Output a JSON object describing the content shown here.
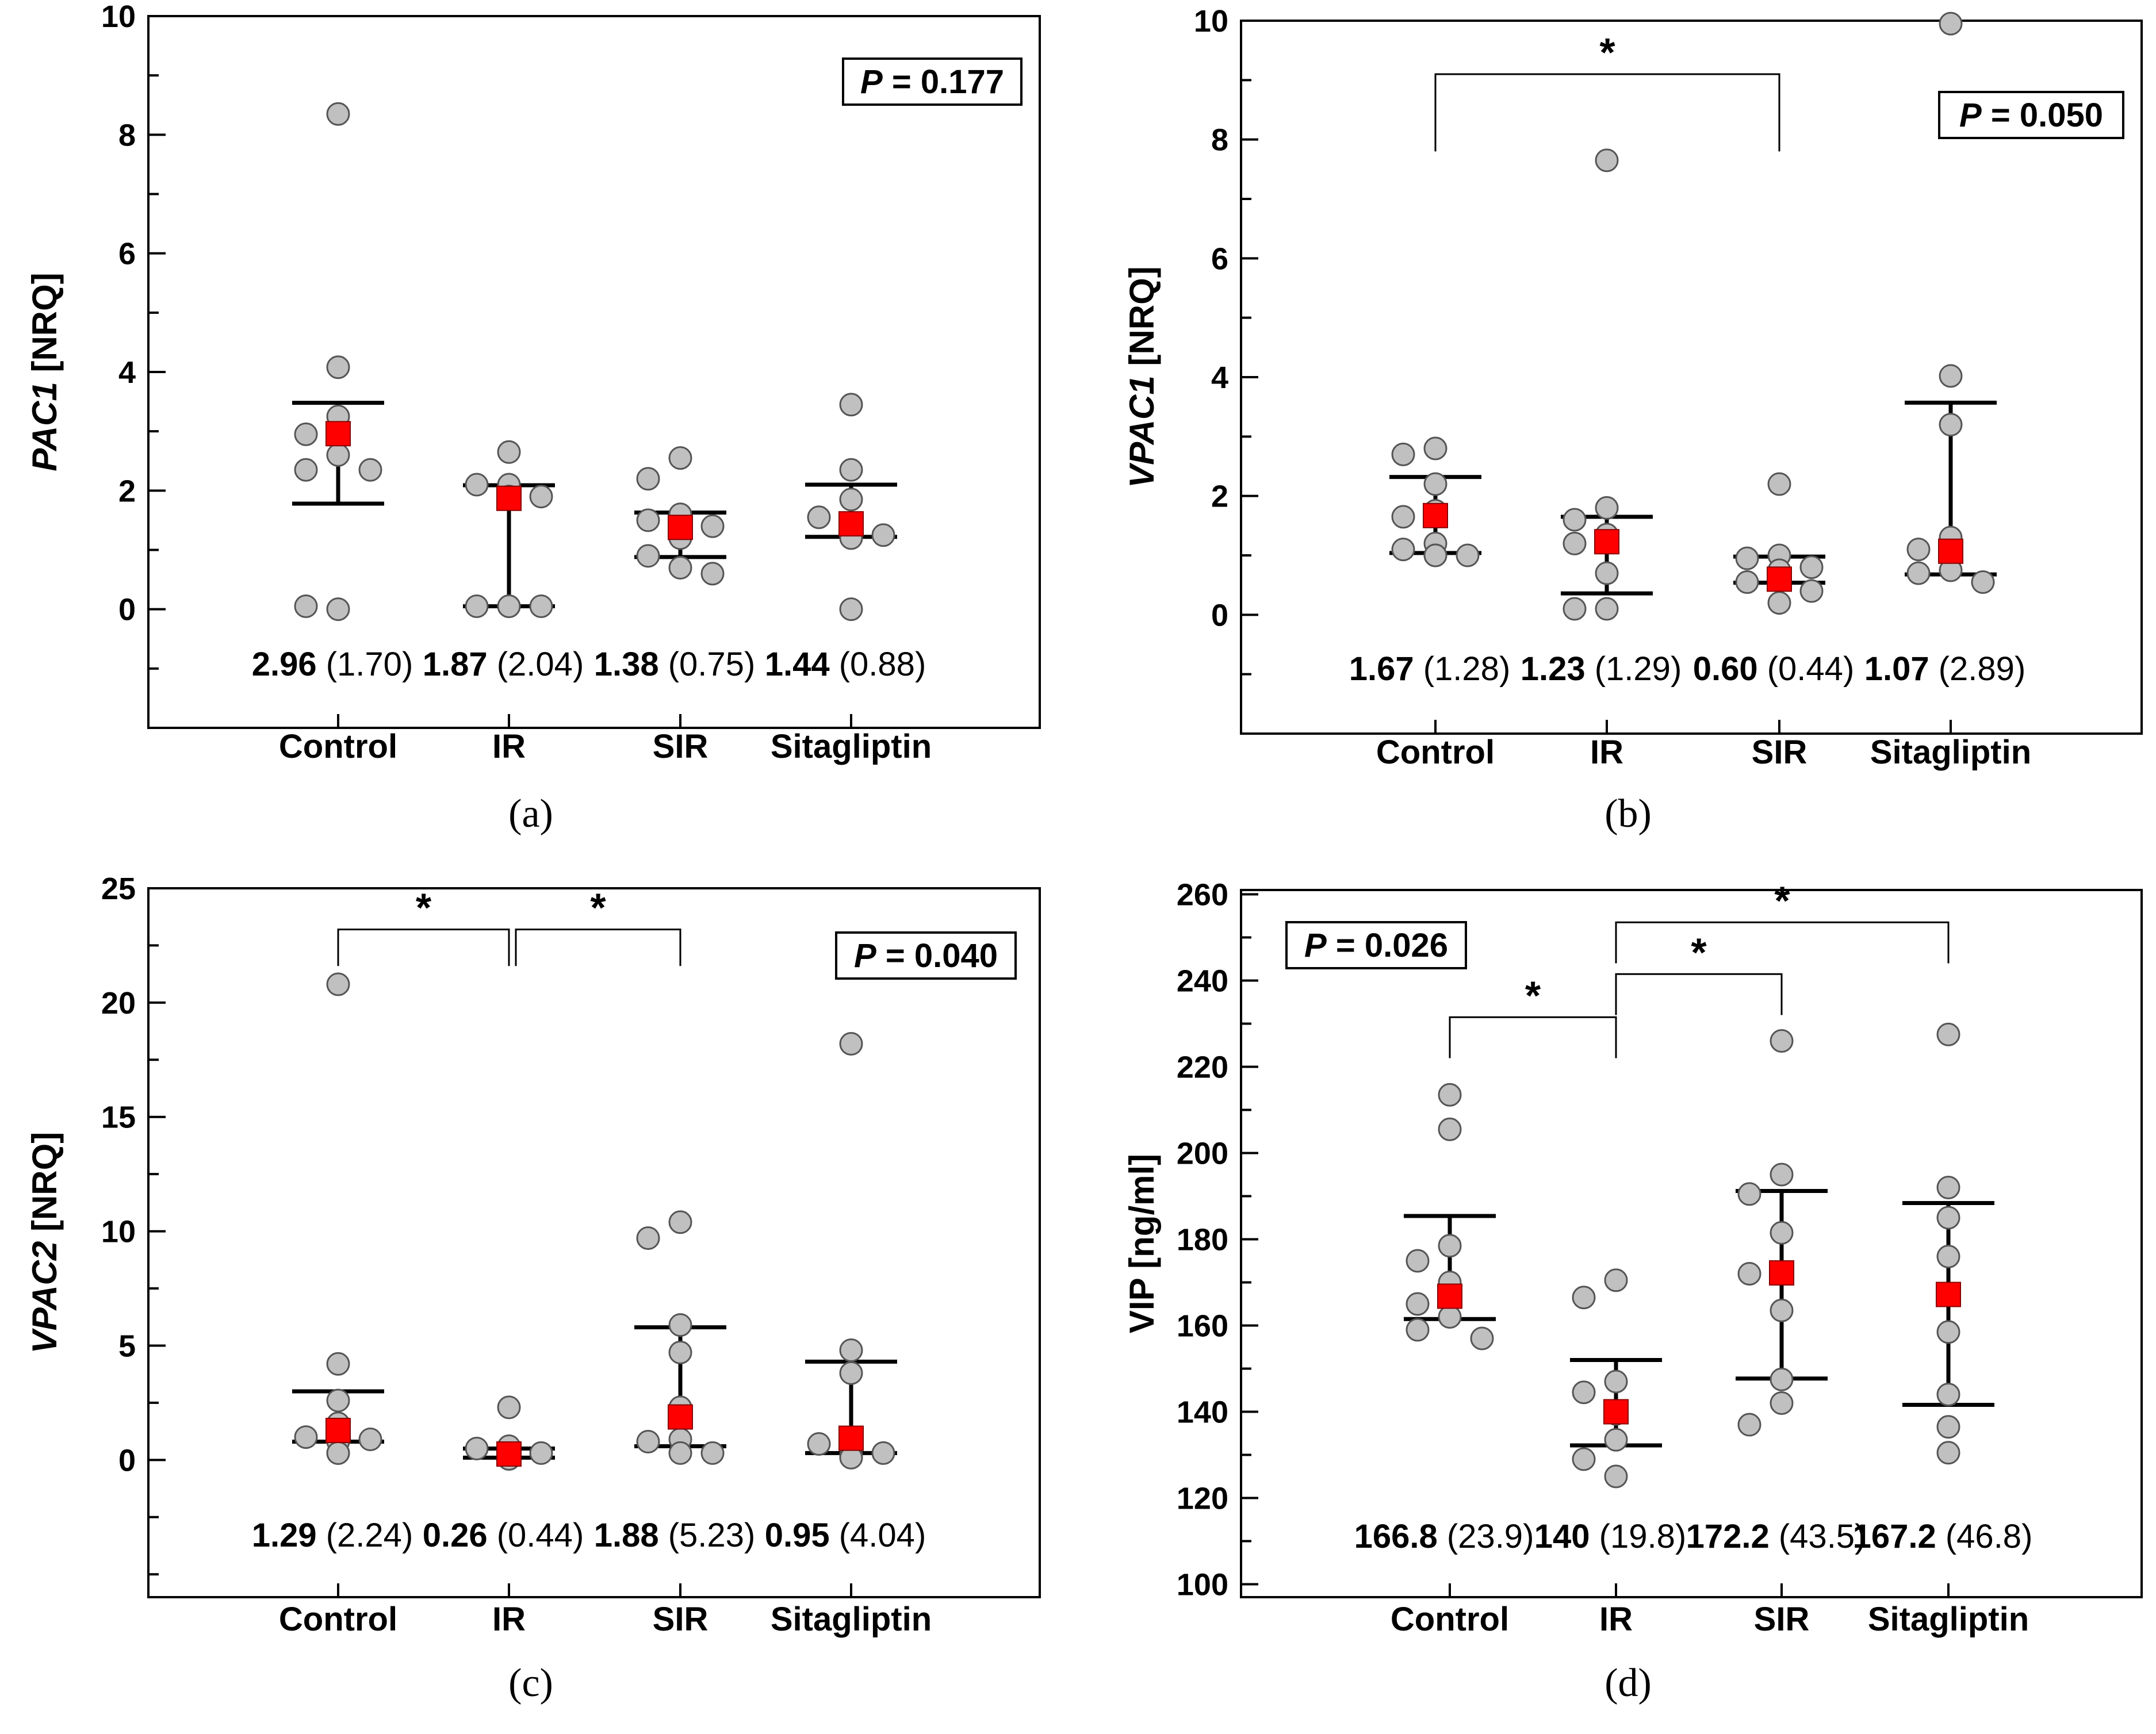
{
  "chart_data": [
    {
      "type": "scatter",
      "panel_label": "(a)",
      "ylabel_gene": "PAC1",
      "ylabel_unit": "[NRQ]",
      "ylim": [
        -2,
        10
      ],
      "yticks": [
        0,
        2,
        4,
        6,
        8,
        10
      ],
      "p_value_label": "P",
      "p_value_rest": " = 0.177",
      "categories": [
        "Control",
        "IR",
        "SIR",
        "Sitagliptin"
      ],
      "groups": [
        {
          "name": "Control",
          "points": [
            8.35,
            4.08,
            3.25,
            2.95,
            2.6,
            2.35,
            2.35,
            0.0,
            0.05
          ],
          "median": 2.96,
          "q_low": 1.78,
          "q_high": 3.48,
          "median_label": "2.96",
          "iqr_label": "(1.70)"
        },
        {
          "name": "IR",
          "points": [
            2.65,
            2.1,
            2.1,
            1.9,
            1.9,
            0.05,
            0.05,
            0.05,
            0.05
          ],
          "median": 1.87,
          "q_low": 0.05,
          "q_high": 2.09,
          "median_label": "1.87",
          "iqr_label": "(2.04)"
        },
        {
          "name": "SIR",
          "points": [
            2.55,
            2.2,
            1.6,
            1.5,
            1.4,
            1.3,
            1.2,
            0.9,
            0.7,
            0.6
          ],
          "median": 1.38,
          "q_low": 0.88,
          "q_high": 1.63,
          "median_label": "1.38",
          "iqr_label": "(0.75)"
        },
        {
          "name": "Sitagliptin",
          "points": [
            3.45,
            2.35,
            1.85,
            1.55,
            1.25,
            1.25,
            1.2,
            0.0
          ],
          "median": 1.44,
          "q_low": 1.22,
          "q_high": 2.1,
          "median_label": "1.44",
          "iqr_label": "(0.88)"
        }
      ],
      "brackets": []
    },
    {
      "type": "scatter",
      "panel_label": "(b)",
      "ylabel_gene": "VPAC1",
      "ylabel_unit": "[NRQ]",
      "ylim": [
        -2,
        10
      ],
      "yticks": [
        0,
        2,
        4,
        6,
        8,
        10
      ],
      "p_value_label": "P",
      "p_value_rest": " = 0.050",
      "categories": [
        "Control",
        "IR",
        "SIR",
        "Sitagliptin"
      ],
      "groups": [
        {
          "name": "Control",
          "points": [
            2.8,
            2.7,
            2.2,
            1.75,
            1.65,
            1.2,
            1.1,
            1.0,
            1.0,
            1.0
          ],
          "median": 1.67,
          "q_low": 1.04,
          "q_high": 2.32,
          "median_label": "1.67",
          "iqr_label": "(1.28)"
        },
        {
          "name": "IR",
          "points": [
            7.65,
            1.8,
            1.6,
            1.35,
            1.2,
            0.7,
            0.1,
            0.1
          ],
          "median": 1.23,
          "q_low": 0.36,
          "q_high": 1.65,
          "median_label": "1.23",
          "iqr_label": "(1.29)"
        },
        {
          "name": "SIR",
          "points": [
            2.2,
            1.0,
            0.95,
            0.8,
            0.75,
            0.6,
            0.55,
            0.4,
            0.2
          ],
          "median": 0.6,
          "q_low": 0.54,
          "q_high": 0.98,
          "median_label": "0.60",
          "iqr_label": "(0.44)"
        },
        {
          "name": "Sitagliptin",
          "points": [
            9.95,
            4.02,
            3.2,
            1.3,
            1.1,
            0.75,
            0.7,
            0.55
          ],
          "median": 1.07,
          "q_low": 0.68,
          "q_high": 3.57,
          "median_label": "1.07",
          "iqr_label": "(2.89)"
        }
      ],
      "brackets": [
        {
          "from": 0,
          "to": 2,
          "y": 9.1,
          "drop_to": 7.8,
          "label": "*"
        }
      ]
    },
    {
      "type": "scatter",
      "panel_label": "(c)",
      "ylabel_gene": "VPAC2",
      "ylabel_unit": "[NRQ]",
      "ylim": [
        -6,
        25
      ],
      "yticks": [
        0,
        5,
        10,
        15,
        20,
        25
      ],
      "p_value_label": "P",
      "p_value_rest": " = 0.040",
      "categories": [
        "Control",
        "IR",
        "SIR",
        "Sitagliptin"
      ],
      "groups": [
        {
          "name": "Control",
          "points": [
            20.8,
            4.2,
            2.6,
            1.6,
            1.0,
            0.9,
            0.8,
            0.3,
            0.3
          ],
          "median": 1.29,
          "q_low": 0.8,
          "q_high": 3.0,
          "median_label": "1.29",
          "iqr_label": "(2.24)"
        },
        {
          "name": "IR",
          "points": [
            2.3,
            0.6,
            0.5,
            0.3,
            0.1,
            0.05,
            0.05,
            0.05
          ],
          "median": 0.26,
          "q_low": 0.1,
          "q_high": 0.5,
          "median_label": "0.26",
          "iqr_label": "(0.44)"
        },
        {
          "name": "SIR",
          "points": [
            10.4,
            9.7,
            5.9,
            4.7,
            2.3,
            0.9,
            0.8,
            0.3,
            0.3
          ],
          "median": 1.88,
          "q_low": 0.6,
          "q_high": 5.8,
          "median_label": "1.88",
          "iqr_label": "(5.23)"
        },
        {
          "name": "Sitagliptin",
          "points": [
            18.2,
            4.8,
            3.8,
            0.8,
            0.7,
            0.3,
            0.2,
            0.1
          ],
          "median": 0.95,
          "q_low": 0.3,
          "q_high": 4.3,
          "median_label": "0.95",
          "iqr_label": "(4.04)"
        }
      ],
      "brackets": [
        {
          "from": 0,
          "to": 1,
          "y": 23.2,
          "drop_to": 21.6,
          "label": "*"
        },
        {
          "from": 1,
          "to": 2,
          "y": 23.2,
          "drop_to": 21.6,
          "label": "*"
        }
      ]
    },
    {
      "type": "scatter",
      "panel_label": "(d)",
      "ylabel_gene": "VIP",
      "ylabel_unit": "[ng/ml]",
      "ylabel_italic": false,
      "ylim": [
        97,
        261
      ],
      "yticks": [
        100,
        120,
        140,
        160,
        180,
        200,
        220,
        240,
        260
      ],
      "p_value_label": "P",
      "p_value_rest": " = 0.026",
      "categories": [
        "Control",
        "IR",
        "SIR",
        "Sitagliptin"
      ],
      "groups": [
        {
          "name": "Control",
          "points": [
            213.5,
            205.5,
            178.5,
            175.0,
            170.0,
            165.0,
            162.0,
            159.0,
            157.0
          ],
          "median": 166.8,
          "q_low": 161.5,
          "q_high": 185.4,
          "median_label": "166.8",
          "iqr_label": "(23.9)"
        },
        {
          "name": "IR",
          "points": [
            170.5,
            166.5,
            147.0,
            144.5,
            139.5,
            133.5,
            129.0,
            125.0
          ],
          "median": 140,
          "q_low": 132.2,
          "q_high": 152.0,
          "median_label": "140",
          "iqr_label": "(19.8)"
        },
        {
          "name": "SIR",
          "points": [
            226.0,
            195.0,
            190.5,
            181.5,
            172.0,
            172.0,
            163.5,
            147.5,
            142.0,
            137.0
          ],
          "median": 172.2,
          "q_low": 147.7,
          "q_high": 191.2,
          "median_label": "172.2",
          "iqr_label": "(43.5)"
        },
        {
          "name": "Sitagliptin",
          "points": [
            227.5,
            192.0,
            185.0,
            176.0,
            158.5,
            144.0,
            136.5,
            130.5
          ],
          "median": 167.2,
          "q_low": 141.6,
          "q_high": 188.4,
          "median_label": "167.2",
          "iqr_label": "(46.8)"
        }
      ],
      "brackets": [
        {
          "from": 0,
          "to": 1,
          "y": 231.5,
          "drop_to": 222,
          "label": "*"
        },
        {
          "from": 1,
          "to": 2,
          "y": 241.5,
          "drop_to": 232,
          "label": "*"
        },
        {
          "from": 1,
          "to": 3,
          "y": 253.5,
          "drop_to": 244,
          "label": "*"
        }
      ]
    }
  ],
  "colors": {
    "point_fill": "#c0c0c0",
    "point_stroke": "#555555",
    "median_fill": "#ff0000",
    "median_stroke": "#8b0000",
    "axis": "#000000"
  }
}
